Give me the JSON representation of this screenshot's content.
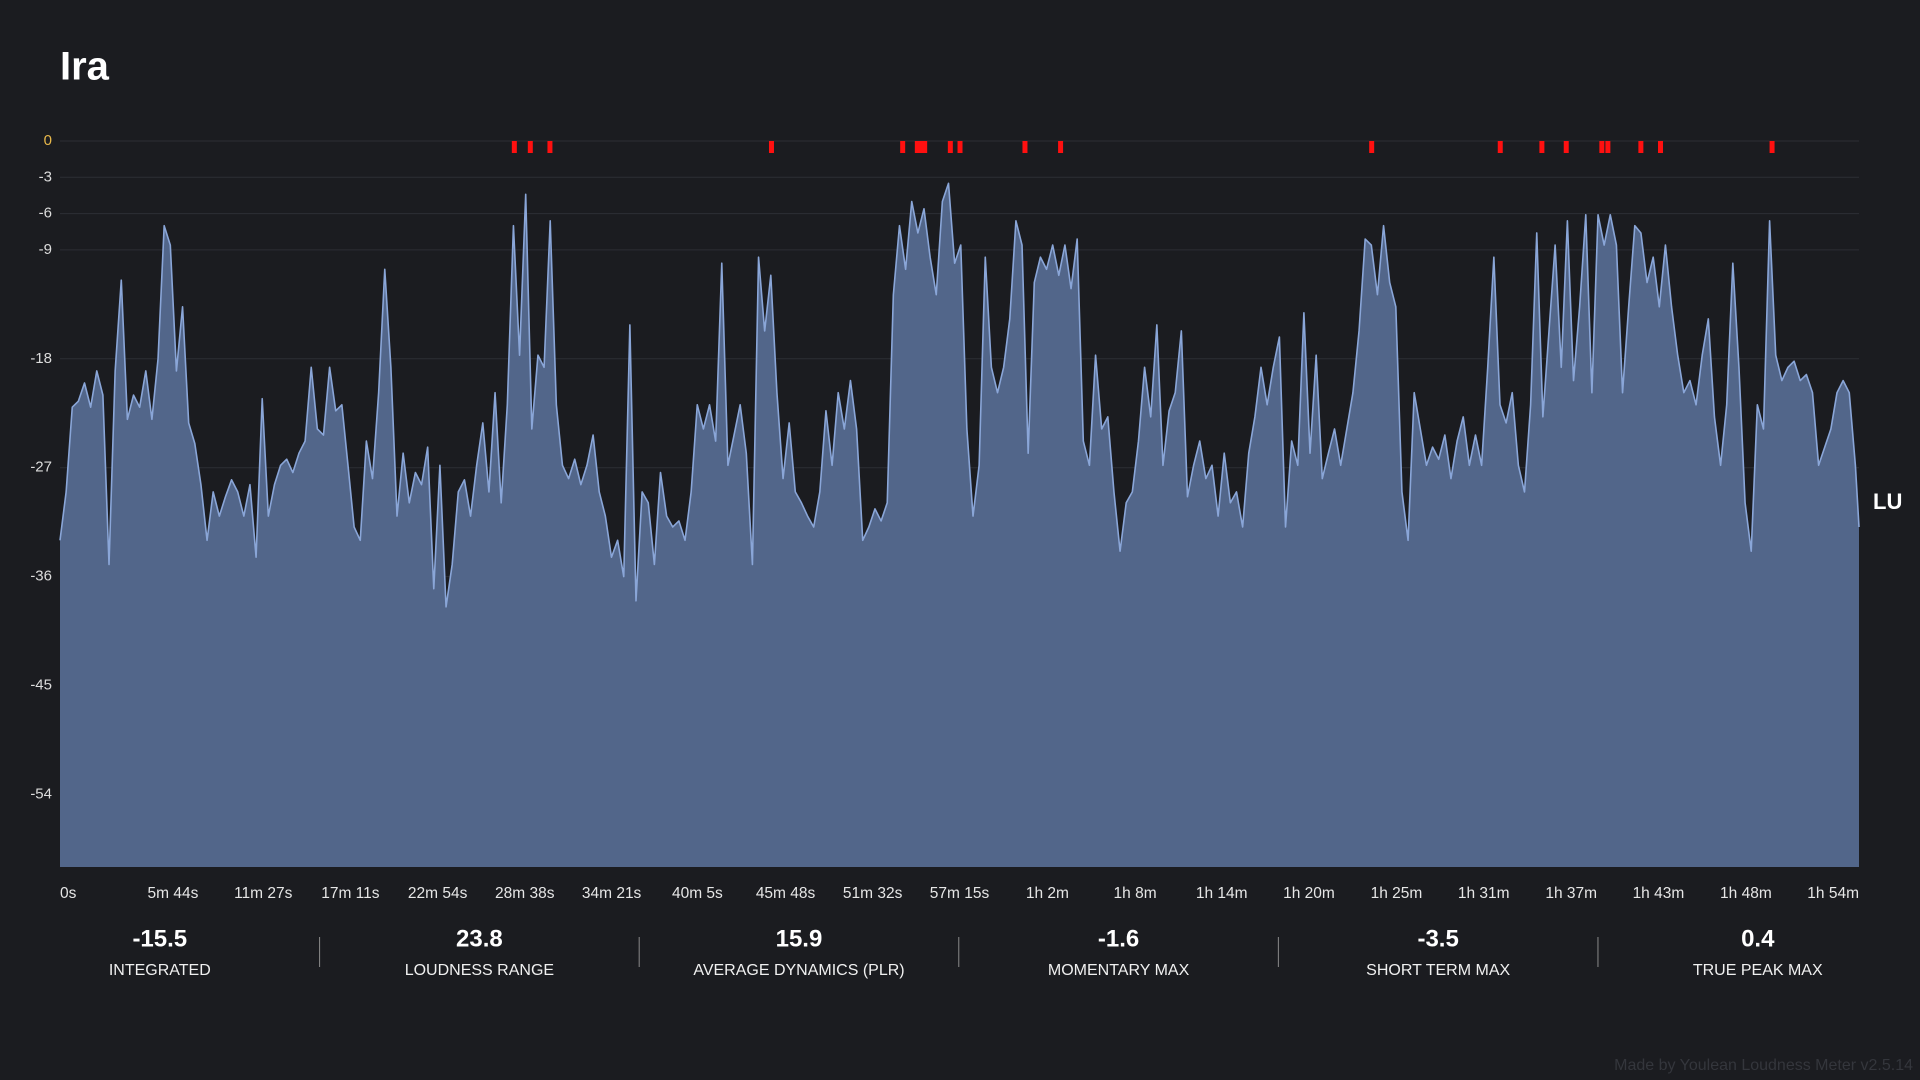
{
  "chart_data": {
    "type": "area",
    "title": "Ira",
    "x": [
      0,
      23.4,
      46.8,
      70.2,
      93.6,
      117,
      140.4,
      163.8,
      187.2,
      210.6,
      234,
      257.4,
      280.8,
      304.2,
      327.6,
      351,
      374.4,
      397.8,
      421.2,
      444.6,
      468,
      491.4,
      514.8,
      538.2,
      561.6,
      585,
      608.4,
      631.8,
      655.2,
      678.6,
      702,
      725.4,
      748.8,
      772.2,
      795.6,
      819,
      842.4,
      865.8,
      889.2,
      912.6,
      936,
      959.4,
      982.8,
      1006.2,
      1029.6,
      1053,
      1076.4,
      1099.8,
      1123.2,
      1146.6,
      1170,
      1193.4,
      1216.8,
      1240.2,
      1263.6,
      1287,
      1310.4,
      1333.8,
      1357.2,
      1380.6,
      1404,
      1427.4,
      1450.8,
      1474.2,
      1497.6,
      1521,
      1544.4,
      1567.8,
      1591.2,
      1614.6,
      1638,
      1661.4,
      1684.8,
      1708.2,
      1731.6,
      1755,
      1778.4,
      1801.8,
      1825.2,
      1848.6,
      1872,
      1895.4,
      1918.8,
      1942.2,
      1965.6,
      1989,
      2012.4,
      2035.8,
      2059.2,
      2082.6,
      2106,
      2129.4,
      2152.8,
      2176.2,
      2199.6,
      2223,
      2246.4,
      2269.8,
      2293.2,
      2316.6,
      2340,
      2363.4,
      2386.8,
      2410.2,
      2433.6,
      2457,
      2480.4,
      2503.8,
      2527.2,
      2550.6,
      2574,
      2597.4,
      2620.8,
      2644.2,
      2667.6,
      2691,
      2714.4,
      2737.8,
      2761.2,
      2784.6,
      2808,
      2831.4,
      2854.8,
      2878.2,
      2901.6,
      2925,
      2948.4,
      2971.8,
      2995.2,
      3018.6,
      3042,
      3065.4,
      3088.8,
      3112.2,
      3135.6,
      3159,
      3182.4,
      3205.8,
      3229.2,
      3252.6,
      3276,
      3299.4,
      3322.8,
      3346.2,
      3369.6,
      3393,
      3416.4,
      3439.8,
      3463.2,
      3486.6,
      3510,
      3533.4,
      3556.8,
      3580.2,
      3603.6,
      3627,
      3650.4,
      3673.8,
      3697.2,
      3720.6,
      3744,
      3767.4,
      3790.8,
      3814.2,
      3837.6,
      3861,
      3884.4,
      3907.8,
      3931.2,
      3954.6,
      3978,
      4001.4,
      4024.8,
      4048.2,
      4071.6,
      4095,
      4118.4,
      4141.8,
      4165.2,
      4188.6,
      4212,
      4235.4,
      4258.8,
      4282.2,
      4305.6,
      4329,
      4352.4,
      4375.8,
      4399.2,
      4422.6,
      4446,
      4469.4,
      4492.8,
      4516.2,
      4539.6,
      4563,
      4586.4,
      4609.8,
      4633.2,
      4656.6,
      4680,
      4703.4,
      4726.8,
      4750.2,
      4773.6,
      4797,
      4820.4,
      4843.8,
      4867.2,
      4890.6,
      4914,
      4937.4,
      4960.8,
      4984.2,
      5007.6,
      5031,
      5054.4,
      5077.8,
      5101.2,
      5124.6,
      5148,
      5171.4,
      5194.8,
      5218.2,
      5241.6,
      5265,
      5288.4,
      5311.8,
      5335.2,
      5358.6,
      5382,
      5405.4,
      5428.8,
      5452.2,
      5475.6,
      5499,
      5522.4,
      5545.8,
      5569.2,
      5592.6,
      5616,
      5639.4,
      5662.8,
      5686.2,
      5709.6,
      5733,
      5756.4,
      5779.8,
      5803.2,
      5826.6,
      5850,
      5873.4,
      5896.8,
      5920.2,
      5943.6,
      5967,
      5990.4,
      6013.8,
      6037.2,
      6060.6,
      6084,
      6107.4,
      6130.8,
      6154.2,
      6177.6,
      6201,
      6224.4,
      6247.8,
      6271.2,
      6294.6,
      6318,
      6341.4,
      6364.8,
      6388.2,
      6411.6,
      6435,
      6458.4,
      6481.8,
      6505.2,
      6528.6,
      6552,
      6575.4,
      6598.8,
      6622.2,
      6645.6,
      6669,
      6692.4,
      6715.8,
      6739.2,
      6762.6,
      6786,
      6809.4,
      6832.8,
      6856.2,
      6870
    ],
    "values": [
      -33,
      -29,
      -22,
      -21.5,
      -20,
      -22,
      -19,
      -21,
      -35,
      -19,
      -11.5,
      -23,
      -21,
      -22,
      -19,
      -23,
      -18,
      -7,
      -8.6,
      -19,
      -13.7,
      -23.3,
      -25,
      -28.4,
      -33,
      -29,
      -31,
      -29.4,
      -28,
      -29,
      -31,
      -28.4,
      -34.4,
      -21.3,
      -31,
      -28.4,
      -26.8,
      -26.3,
      -27.4,
      -25.8,
      -24.8,
      -18.7,
      -23.8,
      -24.3,
      -18.7,
      -22.3,
      -21.8,
      -26.8,
      -31.9,
      -33,
      -24.8,
      -27.9,
      -20.8,
      -10.6,
      -18.7,
      -31,
      -25.8,
      -29.9,
      -27.4,
      -28.4,
      -25.3,
      -37,
      -26.8,
      -38.5,
      -35,
      -29,
      -28,
      -31,
      -26.8,
      -23.3,
      -29,
      -20.8,
      -29.9,
      -21.8,
      -7,
      -17.7,
      -4.4,
      -23.8,
      -17.7,
      -18.7,
      -6.6,
      -21.8,
      -26.8,
      -27.9,
      -26.3,
      -28.4,
      -26.8,
      -24.3,
      -29,
      -31,
      -34.4,
      -33,
      -36,
      -15.2,
      -38,
      -29,
      -29.9,
      -35,
      -27.4,
      -31,
      -31.9,
      -31.4,
      -33,
      -29,
      -21.8,
      -23.8,
      -21.8,
      -24.8,
      -10.1,
      -26.8,
      -24.3,
      -21.8,
      -25.8,
      -35,
      -9.6,
      -15.7,
      -11.1,
      -20.8,
      -27.9,
      -23.3,
      -29,
      -29.9,
      -31,
      -31.9,
      -29,
      -22.3,
      -26.8,
      -20.8,
      -23.8,
      -19.8,
      -23.8,
      -33,
      -31.9,
      -30.4,
      -31.4,
      -29.9,
      -12.7,
      -7,
      -10.6,
      -5,
      -7.6,
      -5.6,
      -9.6,
      -12.7,
      -5,
      -3.5,
      -10.1,
      -8.6,
      -23.8,
      -31,
      -26.8,
      -9.6,
      -18.7,
      -20.8,
      -18.7,
      -14.7,
      -6.6,
      -8.6,
      -25.8,
      -11.7,
      -9.6,
      -10.6,
      -8.6,
      -11.1,
      -8.6,
      -12.2,
      -8.1,
      -24.8,
      -26.8,
      -17.7,
      -23.8,
      -22.8,
      -29,
      -33.9,
      -29.9,
      -29,
      -24.8,
      -18.7,
      -22.8,
      -15.2,
      -26.8,
      -22.3,
      -20.8,
      -15.7,
      -29.4,
      -26.8,
      -24.8,
      -27.9,
      -26.8,
      -31,
      -25.8,
      -29.9,
      -29,
      -31.9,
      -25.8,
      -22.8,
      -18.7,
      -21.8,
      -18.7,
      -16.2,
      -31.9,
      -24.8,
      -26.8,
      -14.2,
      -25.8,
      -17.7,
      -27.9,
      -25.8,
      -23.8,
      -26.8,
      -23.8,
      -20.8,
      -15.7,
      -8.1,
      -8.6,
      -12.7,
      -7,
      -11.7,
      -13.7,
      -29,
      -33,
      -20.8,
      -23.8,
      -26.8,
      -25.3,
      -26.3,
      -24.3,
      -27.9,
      -24.8,
      -22.8,
      -26.8,
      -24.3,
      -26.8,
      -18.7,
      -9.6,
      -21.8,
      -23.3,
      -20.8,
      -26.8,
      -29,
      -21.8,
      -7.6,
      -22.8,
      -15.7,
      -8.6,
      -18.7,
      -6.6,
      -19.8,
      -13.7,
      -6.1,
      -20.8,
      -6.1,
      -8.6,
      -6.1,
      -8.6,
      -20.8,
      -13.7,
      -7,
      -7.6,
      -11.7,
      -9.6,
      -13.7,
      -8.6,
      -13.7,
      -17.7,
      -20.8,
      -19.8,
      -21.8,
      -17.7,
      -14.7,
      -22.8,
      -26.8,
      -21.8,
      -10.1,
      -18.7,
      -29.9,
      -33.9,
      -21.8,
      -23.8,
      -6.6,
      -17.7,
      -19.8,
      -18.7,
      -18.2,
      -19.8,
      -19.3,
      -20.8,
      -26.8,
      -25.3,
      -23.8,
      -20.8,
      -19.8,
      -20.8,
      -26.8,
      -31.9
    ],
    "color": "#8aa6d8",
    "fill": "#52668a",
    "xlim": [
      0,
      6870
    ],
    "xticks": [
      {
        "value": 0,
        "label": "0s"
      },
      {
        "value": 344,
        "label": "5m 44s"
      },
      {
        "value": 687,
        "label": "11m 27s"
      },
      {
        "value": 1031,
        "label": "17m 11s"
      },
      {
        "value": 1374,
        "label": "22m 54s"
      },
      {
        "value": 1718,
        "label": "28m 38s"
      },
      {
        "value": 2061,
        "label": "34m 21s"
      },
      {
        "value": 2405,
        "label": "40m 5s"
      },
      {
        "value": 2748,
        "label": "45m 48s"
      },
      {
        "value": 3092,
        "label": "51m 32s"
      },
      {
        "value": 3435,
        "label": "57m 15s"
      },
      {
        "value": 3779,
        "label": "1h 2m"
      },
      {
        "value": 4122,
        "label": "1h 8m"
      },
      {
        "value": 4466,
        "label": "1h 14m"
      },
      {
        "value": 4809,
        "label": "1h 20m"
      },
      {
        "value": 5153,
        "label": "1h 25m"
      },
      {
        "value": 5496,
        "label": "1h 31m"
      },
      {
        "value": 5840,
        "label": "1h 37m"
      },
      {
        "value": 6183,
        "label": "1h 43m"
      },
      {
        "value": 6527,
        "label": "1h 48m"
      },
      {
        "value": 6870,
        "label": "1h 54m"
      }
    ],
    "ylim": [
      -60,
      0
    ],
    "yticks": [
      0,
      -3,
      -6,
      -9,
      -18,
      -27,
      -36,
      -45,
      -54
    ],
    "zero_tick_color": "#e8b84a",
    "y_unit": "LU",
    "grid": true,
    "peaks": {
      "x": [
        1735,
        1796,
        1871,
        2717,
        3218,
        3274,
        3288,
        3302,
        3400,
        3437,
        3685,
        3821,
        5009,
        5500,
        5659,
        5752,
        5888,
        5911,
        6037,
        6112,
        6538
      ],
      "color": "#ff1010"
    }
  },
  "summary": [
    {
      "value": -15.5,
      "label": "INTEGRATED"
    },
    {
      "value": 23.8,
      "label": "LOUDNESS RANGE"
    },
    {
      "value": 15.9,
      "label": "AVERAGE DYNAMICS (PLR)"
    },
    {
      "value": -1.6,
      "label": "MOMENTARY MAX"
    },
    {
      "value": -3.5,
      "label": "SHORT TERM MAX"
    },
    {
      "value": 0.4,
      "label": "TRUE PEAK MAX"
    }
  ],
  "footer": "Made by Youlean Loudness Meter v2.5.14"
}
